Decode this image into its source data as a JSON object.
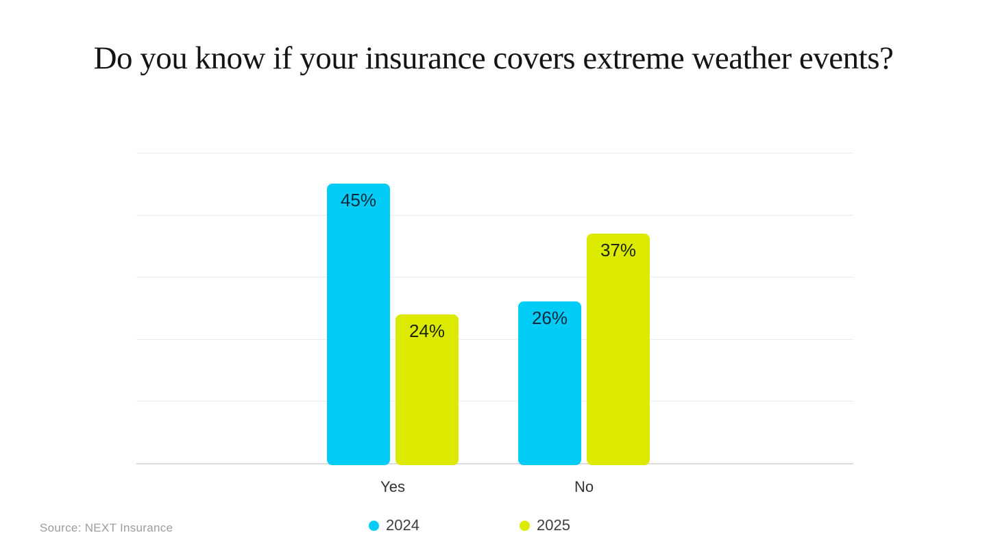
{
  "title": "Do you know if your insurance covers extreme weather events?",
  "source_note": "Source: NEXT Insurance",
  "colors": {
    "background": "#ffffff",
    "title_text": "#141414",
    "gridline": "#ececec",
    "axis_line": "#dbdbdb",
    "axis_label_text": "#333333",
    "legend_text": "#3d3d3d",
    "source_text": "#9c9c9c"
  },
  "chart_data": {
    "type": "bar",
    "title": "Do you know if your insurance covers extreme weather events?",
    "categories": [
      "Yes",
      "No"
    ],
    "series": [
      {
        "name": "2024",
        "color": "#00ccf5",
        "label_color": "#0e2a3f",
        "values": [
          45,
          26
        ]
      },
      {
        "name": "2025",
        "color": "#dbea00",
        "label_color": "#1f2400",
        "values": [
          24,
          37
        ]
      }
    ],
    "data_labels": [
      [
        "45%",
        "26%"
      ],
      [
        "24%",
        "37%"
      ]
    ],
    "value_suffix": "%",
    "xlabel": "",
    "ylabel": "",
    "ylim": [
      0,
      50
    ],
    "gridline_step": 10,
    "grid": true,
    "y_axis_ticks_visible": false,
    "legend_position": "bottom"
  }
}
